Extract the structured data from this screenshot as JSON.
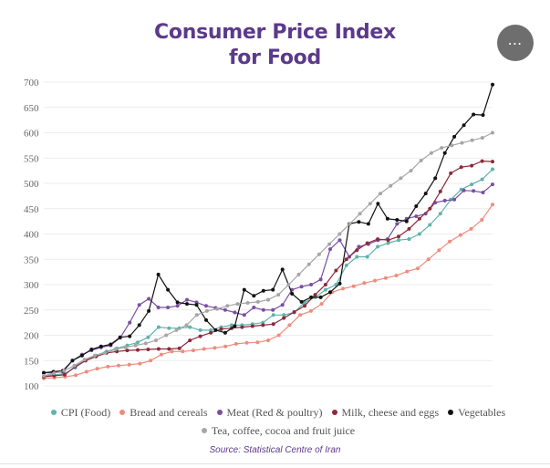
{
  "title_line1": "Consumer Price Index",
  "title_line2": "for Food",
  "menu_icon": "⋯",
  "source": "Source: Statistical Centre of Iran",
  "chart_data": {
    "type": "line",
    "title": "Consumer Price Index for Food",
    "xlabel": "",
    "ylabel": "",
    "ylim": [
      100,
      700
    ],
    "yticks": [
      "700",
      "650",
      "600",
      "550",
      "500",
      "450",
      "400",
      "350",
      "300",
      "250",
      "200",
      "150",
      "100"
    ],
    "ytick_values": [
      700,
      650,
      600,
      550,
      500,
      450,
      400,
      350,
      300,
      250,
      200,
      150,
      100
    ],
    "grid": true,
    "legend_position": "bottom",
    "series": [
      {
        "name": "CPI (Food)",
        "color": "#5fb3ad",
        "values": [
          120,
          122,
          124,
          136,
          150,
          160,
          168,
          174,
          180,
          186,
          196,
          216,
          214,
          214,
          216,
          210,
          210,
          216,
          220,
          220,
          222,
          225,
          240,
          240,
          245,
          265,
          275,
          290,
          300,
          338,
          355,
          355,
          375,
          382,
          388,
          390,
          400,
          418,
          440,
          468,
          488,
          498,
          508,
          528
        ]
      },
      {
        "name": "Bread and cereals",
        "color": "#ef8c7c",
        "values": [
          115,
          116,
          118,
          121,
          128,
          134,
          138,
          140,
          142,
          144,
          150,
          162,
          168,
          168,
          170,
          173,
          175,
          178,
          183,
          185,
          186,
          190,
          200,
          220,
          240,
          248,
          262,
          285,
          292,
          297,
          303,
          308,
          313,
          318,
          326,
          332,
          350,
          368,
          385,
          398,
          410,
          428,
          458
        ]
      },
      {
        "name": "Meat (Red & poultry)",
        "color": "#7a4fa2",
        "values": [
          126,
          126,
          128,
          150,
          162,
          170,
          176,
          180,
          195,
          225,
          260,
          272,
          255,
          255,
          258,
          270,
          265,
          258,
          254,
          250,
          245,
          240,
          255,
          250,
          250,
          260,
          290,
          296,
          300,
          310,
          370,
          388,
          355,
          375,
          380,
          388,
          390,
          420,
          430,
          435,
          440,
          462,
          466,
          468,
          486,
          485,
          482,
          498
        ]
      },
      {
        "name": "Milk, cheese and eggs",
        "color": "#8c2a3a",
        "values": [
          118,
          120,
          122,
          138,
          150,
          158,
          165,
          168,
          170,
          171,
          172,
          173,
          173,
          174,
          190,
          198,
          205,
          212,
          214,
          216,
          218,
          220,
          222,
          234,
          246,
          258,
          280,
          300,
          328,
          350,
          368,
          382,
          390,
          388,
          395,
          410,
          430,
          450,
          484,
          520,
          532,
          535,
          544,
          543
        ]
      },
      {
        "name": "Vegetables",
        "color": "#111111",
        "values": [
          126,
          128,
          130,
          150,
          160,
          172,
          178,
          182,
          196,
          198,
          220,
          248,
          320,
          290,
          265,
          262,
          260,
          230,
          210,
          205,
          218,
          290,
          278,
          288,
          290,
          330,
          282,
          266,
          275,
          275,
          285,
          302,
          420,
          424,
          420,
          460,
          430,
          428,
          425,
          455,
          480,
          510,
          560,
          592,
          615,
          636,
          635,
          695
        ]
      },
      {
        "name": "Tea, coffee, cocoa and fruit juice",
        "color": "#a6a6a6",
        "values": [
          120,
          125,
          130,
          140,
          152,
          160,
          165,
          172,
          176,
          180,
          184,
          190,
          200,
          210,
          220,
          240,
          248,
          252,
          258,
          262,
          264,
          266,
          270,
          280,
          300,
          320,
          340,
          360,
          380,
          400,
          420,
          440,
          460,
          480,
          495,
          510,
          525,
          545,
          560,
          570,
          575,
          580,
          585,
          590,
          600
        ]
      }
    ]
  }
}
